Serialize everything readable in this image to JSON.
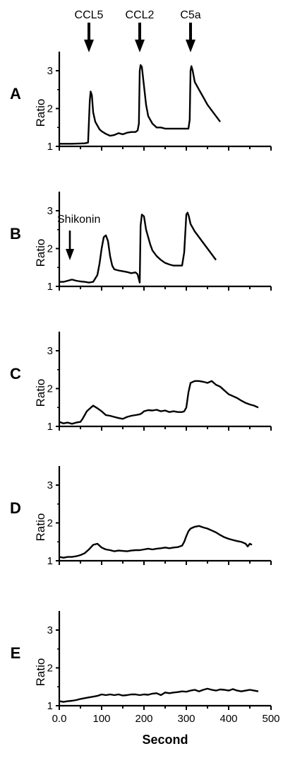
{
  "chart_data": {
    "type": "line",
    "xlabel": "Second",
    "xticks": [
      "0.0",
      "100",
      "200",
      "300",
      "400",
      "500"
    ],
    "xlim": [
      0,
      500
    ],
    "ylim": [
      1,
      3.5
    ],
    "ylabel": "Ratio",
    "yticks": [
      "1",
      "2",
      "3"
    ],
    "stimuli": [
      {
        "label": "CCL5",
        "x": 70
      },
      {
        "label": "CCL2",
        "x": 190
      },
      {
        "label": "C5a",
        "x": 310
      }
    ],
    "panels": [
      {
        "label": "A",
        "series": [
          {
            "x": [
              0,
              30,
              60,
              68,
              72,
              74,
              77,
              80,
              85,
              90,
              95,
              100,
              110,
              120,
              130,
              140,
              150,
              160,
              170,
              180,
              185,
              188,
              190,
              192,
              195,
              200,
              205,
              210,
              215,
              220,
              230,
              240,
              250,
              260,
              270,
              280,
              290,
              300,
              305,
              308,
              310,
              312,
              315,
              320,
              330,
              340,
              350,
              360,
              370,
              380
            ],
            "y": [
              1.07,
              1.07,
              1.08,
              1.1,
              2.2,
              2.45,
              2.35,
              1.9,
              1.65,
              1.55,
              1.45,
              1.4,
              1.33,
              1.28,
              1.3,
              1.35,
              1.32,
              1.36,
              1.38,
              1.38,
              1.42,
              1.6,
              3.0,
              3.15,
              3.1,
              2.6,
              2.1,
              1.8,
              1.7,
              1.6,
              1.5,
              1.5,
              1.47,
              1.47,
              1.47,
              1.47,
              1.47,
              1.47,
              1.47,
              1.7,
              3.0,
              3.12,
              3.0,
              2.7,
              2.5,
              2.3,
              2.1,
              1.95,
              1.8,
              1.65
            ]
          }
        ],
        "annotation": ""
      },
      {
        "label": "B",
        "annotation": "Shikonin",
        "annotation_x": 25,
        "series": [
          {
            "x": [
              0,
              10,
              20,
              30,
              40,
              50,
              60,
              70,
              80,
              90,
              95,
              100,
              105,
              110,
              115,
              120,
              125,
              130,
              140,
              150,
              160,
              170,
              180,
              185,
              190,
              192,
              195,
              200,
              205,
              210,
              215,
              220,
              230,
              240,
              250,
              260,
              270,
              280,
              290,
              295,
              300,
              303,
              306,
              310,
              320,
              330,
              340,
              350,
              360,
              370
            ],
            "y": [
              1.12,
              1.12,
              1.15,
              1.18,
              1.15,
              1.13,
              1.12,
              1.1,
              1.12,
              1.3,
              1.6,
              2.0,
              2.3,
              2.35,
              2.2,
              1.8,
              1.55,
              1.45,
              1.42,
              1.4,
              1.38,
              1.35,
              1.37,
              1.32,
              1.1,
              2.6,
              2.9,
              2.85,
              2.5,
              2.3,
              2.1,
              1.95,
              1.8,
              1.7,
              1.62,
              1.58,
              1.55,
              1.55,
              1.55,
              1.9,
              2.9,
              2.95,
              2.85,
              2.65,
              2.45,
              2.3,
              2.15,
              2.0,
              1.85,
              1.7
            ]
          }
        ]
      },
      {
        "label": "C",
        "annotation": "",
        "series": [
          {
            "x": [
              0,
              10,
              20,
              30,
              40,
              50,
              55,
              60,
              65,
              70,
              80,
              90,
              100,
              110,
              120,
              130,
              140,
              150,
              160,
              170,
              180,
              190,
              195,
              200,
              210,
              220,
              230,
              240,
              250,
              260,
              270,
              280,
              290,
              295,
              300,
              305,
              310,
              320,
              330,
              340,
              350,
              360,
              370,
              380,
              390,
              400,
              410,
              420,
              430,
              440,
              450,
              460,
              470
            ],
            "y": [
              1.12,
              1.08,
              1.1,
              1.07,
              1.1,
              1.12,
              1.2,
              1.3,
              1.4,
              1.45,
              1.55,
              1.48,
              1.4,
              1.3,
              1.28,
              1.25,
              1.22,
              1.2,
              1.25,
              1.28,
              1.3,
              1.32,
              1.35,
              1.4,
              1.43,
              1.42,
              1.44,
              1.4,
              1.42,
              1.38,
              1.4,
              1.38,
              1.38,
              1.4,
              1.5,
              1.9,
              2.15,
              2.2,
              2.2,
              2.18,
              2.15,
              2.2,
              2.1,
              2.05,
              1.95,
              1.85,
              1.8,
              1.75,
              1.68,
              1.62,
              1.58,
              1.55,
              1.5
            ]
          }
        ]
      },
      {
        "label": "D",
        "annotation": "",
        "series": [
          {
            "x": [
              0,
              10,
              20,
              30,
              40,
              50,
              60,
              70,
              80,
              90,
              100,
              110,
              120,
              130,
              140,
              150,
              160,
              170,
              180,
              190,
              200,
              210,
              220,
              230,
              240,
              250,
              260,
              270,
              280,
              290,
              295,
              300,
              305,
              310,
              320,
              330,
              340,
              350,
              360,
              370,
              380,
              390,
              400,
              410,
              420,
              430,
              440,
              445,
              450,
              455
            ],
            "y": [
              1.1,
              1.08,
              1.1,
              1.1,
              1.12,
              1.15,
              1.2,
              1.3,
              1.42,
              1.45,
              1.35,
              1.3,
              1.28,
              1.25,
              1.27,
              1.26,
              1.25,
              1.27,
              1.28,
              1.28,
              1.3,
              1.32,
              1.3,
              1.32,
              1.33,
              1.35,
              1.33,
              1.35,
              1.36,
              1.4,
              1.5,
              1.65,
              1.78,
              1.85,
              1.9,
              1.92,
              1.88,
              1.85,
              1.8,
              1.75,
              1.68,
              1.62,
              1.58,
              1.55,
              1.52,
              1.5,
              1.45,
              1.38,
              1.45,
              1.42
            ]
          }
        ]
      },
      {
        "label": "E",
        "annotation": "",
        "series": [
          {
            "x": [
              0,
              10,
              20,
              30,
              40,
              50,
              60,
              70,
              80,
              90,
              100,
              110,
              120,
              130,
              140,
              150,
              160,
              170,
              180,
              190,
              200,
              210,
              220,
              230,
              240,
              250,
              260,
              270,
              280,
              290,
              300,
              310,
              320,
              330,
              340,
              350,
              360,
              370,
              380,
              390,
              400,
              410,
              420,
              430,
              440,
              450,
              460,
              470
            ],
            "y": [
              1.12,
              1.1,
              1.12,
              1.13,
              1.15,
              1.18,
              1.2,
              1.22,
              1.24,
              1.26,
              1.3,
              1.28,
              1.3,
              1.28,
              1.3,
              1.27,
              1.28,
              1.3,
              1.3,
              1.28,
              1.3,
              1.29,
              1.32,
              1.33,
              1.28,
              1.35,
              1.33,
              1.35,
              1.36,
              1.38,
              1.37,
              1.4,
              1.42,
              1.38,
              1.42,
              1.45,
              1.42,
              1.4,
              1.43,
              1.42,
              1.4,
              1.44,
              1.4,
              1.38,
              1.4,
              1.42,
              1.4,
              1.38
            ]
          }
        ]
      }
    ]
  }
}
